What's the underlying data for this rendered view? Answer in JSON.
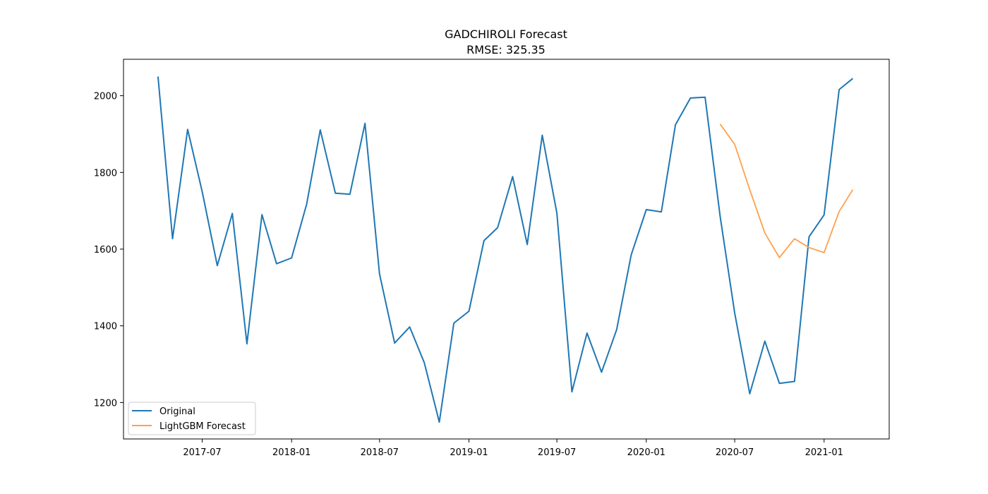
{
  "chart_data": {
    "type": "line",
    "title": "GADCHIROLI Forecast",
    "subtitle": "RMSE: 325.35",
    "xlabel": "",
    "ylabel": "",
    "xlim": [
      "2017-01-20",
      "2021-05-15"
    ],
    "ylim": [
      1105,
      2095
    ],
    "x_ticks": [
      "2017-07",
      "2018-01",
      "2018-07",
      "2019-01",
      "2019-07",
      "2020-01",
      "2020-07",
      "2021-01"
    ],
    "y_ticks": [
      1200,
      1400,
      1600,
      1800,
      2000
    ],
    "grid": false,
    "legend_position": "lower-left",
    "series": [
      {
        "name": "Original",
        "color": "#1f77b4",
        "x": [
          "2017-04-01",
          "2017-05-01",
          "2017-06-01",
          "2017-07-01",
          "2017-08-01",
          "2017-09-01",
          "2017-10-01",
          "2017-11-01",
          "2017-12-01",
          "2018-01-01",
          "2018-02-01",
          "2018-03-01",
          "2018-04-01",
          "2018-05-01",
          "2018-06-01",
          "2018-07-01",
          "2018-08-01",
          "2018-09-01",
          "2018-10-01",
          "2018-11-01",
          "2018-12-01",
          "2019-01-01",
          "2019-02-01",
          "2019-03-01",
          "2019-04-01",
          "2019-05-01",
          "2019-06-01",
          "2019-07-01",
          "2019-08-01",
          "2019-09-01",
          "2019-10-01",
          "2019-11-01",
          "2019-12-01",
          "2020-01-01",
          "2020-02-01",
          "2020-03-01",
          "2020-04-01",
          "2020-05-01",
          "2020-06-01",
          "2020-07-01",
          "2020-08-01",
          "2020-09-01",
          "2020-10-01",
          "2020-11-01",
          "2020-12-01",
          "2021-01-01",
          "2021-02-01",
          "2021-03-01"
        ],
        "values": [
          2050,
          1627,
          1912,
          1750,
          1557,
          1693,
          1353,
          1690,
          1562,
          1577,
          1717,
          1911,
          1746,
          1743,
          1928,
          1535,
          1355,
          1397,
          1304,
          1149,
          1407,
          1438,
          1622,
          1656,
          1789,
          1612,
          1897,
          1694,
          1228,
          1381,
          1279,
          1390,
          1585,
          1703,
          1697,
          1924,
          1994,
          1996,
          1686,
          1433,
          1223,
          1360,
          1250,
          1255,
          1632,
          1689,
          2016,
          2045
        ]
      },
      {
        "name": "LightGBM Forecast",
        "color": "#ffa04d",
        "x": [
          "2020-06-01",
          "2020-07-01",
          "2020-08-01",
          "2020-09-01",
          "2020-10-01",
          "2020-11-01",
          "2020-12-01",
          "2021-01-01",
          "2021-02-01",
          "2021-03-01"
        ],
        "values": [
          1926,
          1873,
          1755,
          1642,
          1578,
          1627,
          1604,
          1591,
          1698,
          1755
        ]
      }
    ]
  }
}
